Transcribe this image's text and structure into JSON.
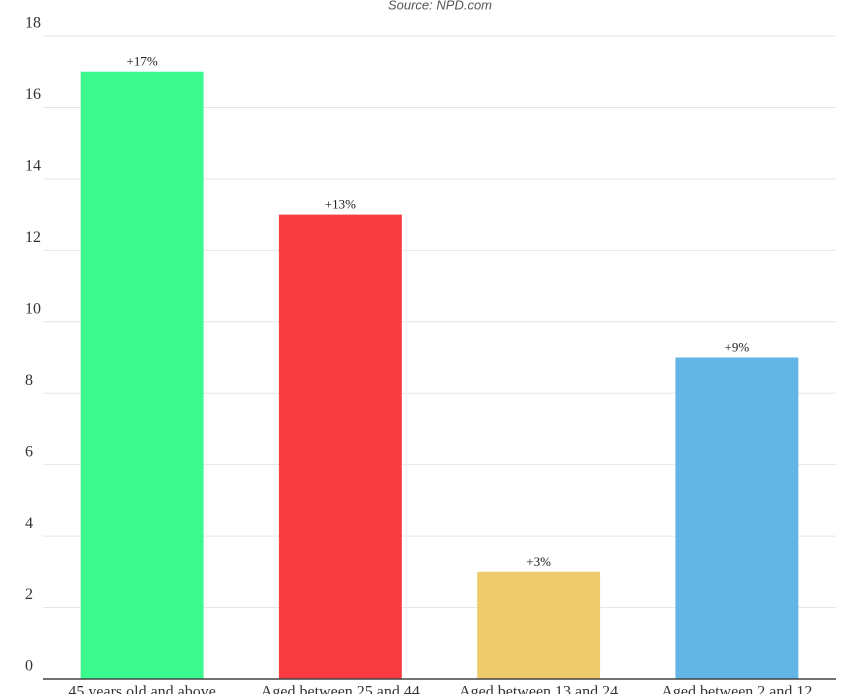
{
  "chart_data": {
    "type": "bar",
    "subtitle": "Source: NPD.com",
    "categories": [
      "45 years old and above",
      "Aged between 25 and 44",
      "Aged between 13 and 24",
      "Aged between 2 and 12"
    ],
    "values": [
      17,
      13,
      3,
      9
    ],
    "value_labels": [
      "+17%",
      "+13%",
      "+3%",
      "+9%"
    ],
    "colors": [
      "#3cf98f",
      "#f93b42",
      "#eecb6b",
      "#62b5e5"
    ],
    "ylim": [
      0,
      18
    ],
    "yticks": [
      0,
      2,
      4,
      6,
      8,
      10,
      12,
      14,
      16,
      18
    ],
    "grid": true
  }
}
